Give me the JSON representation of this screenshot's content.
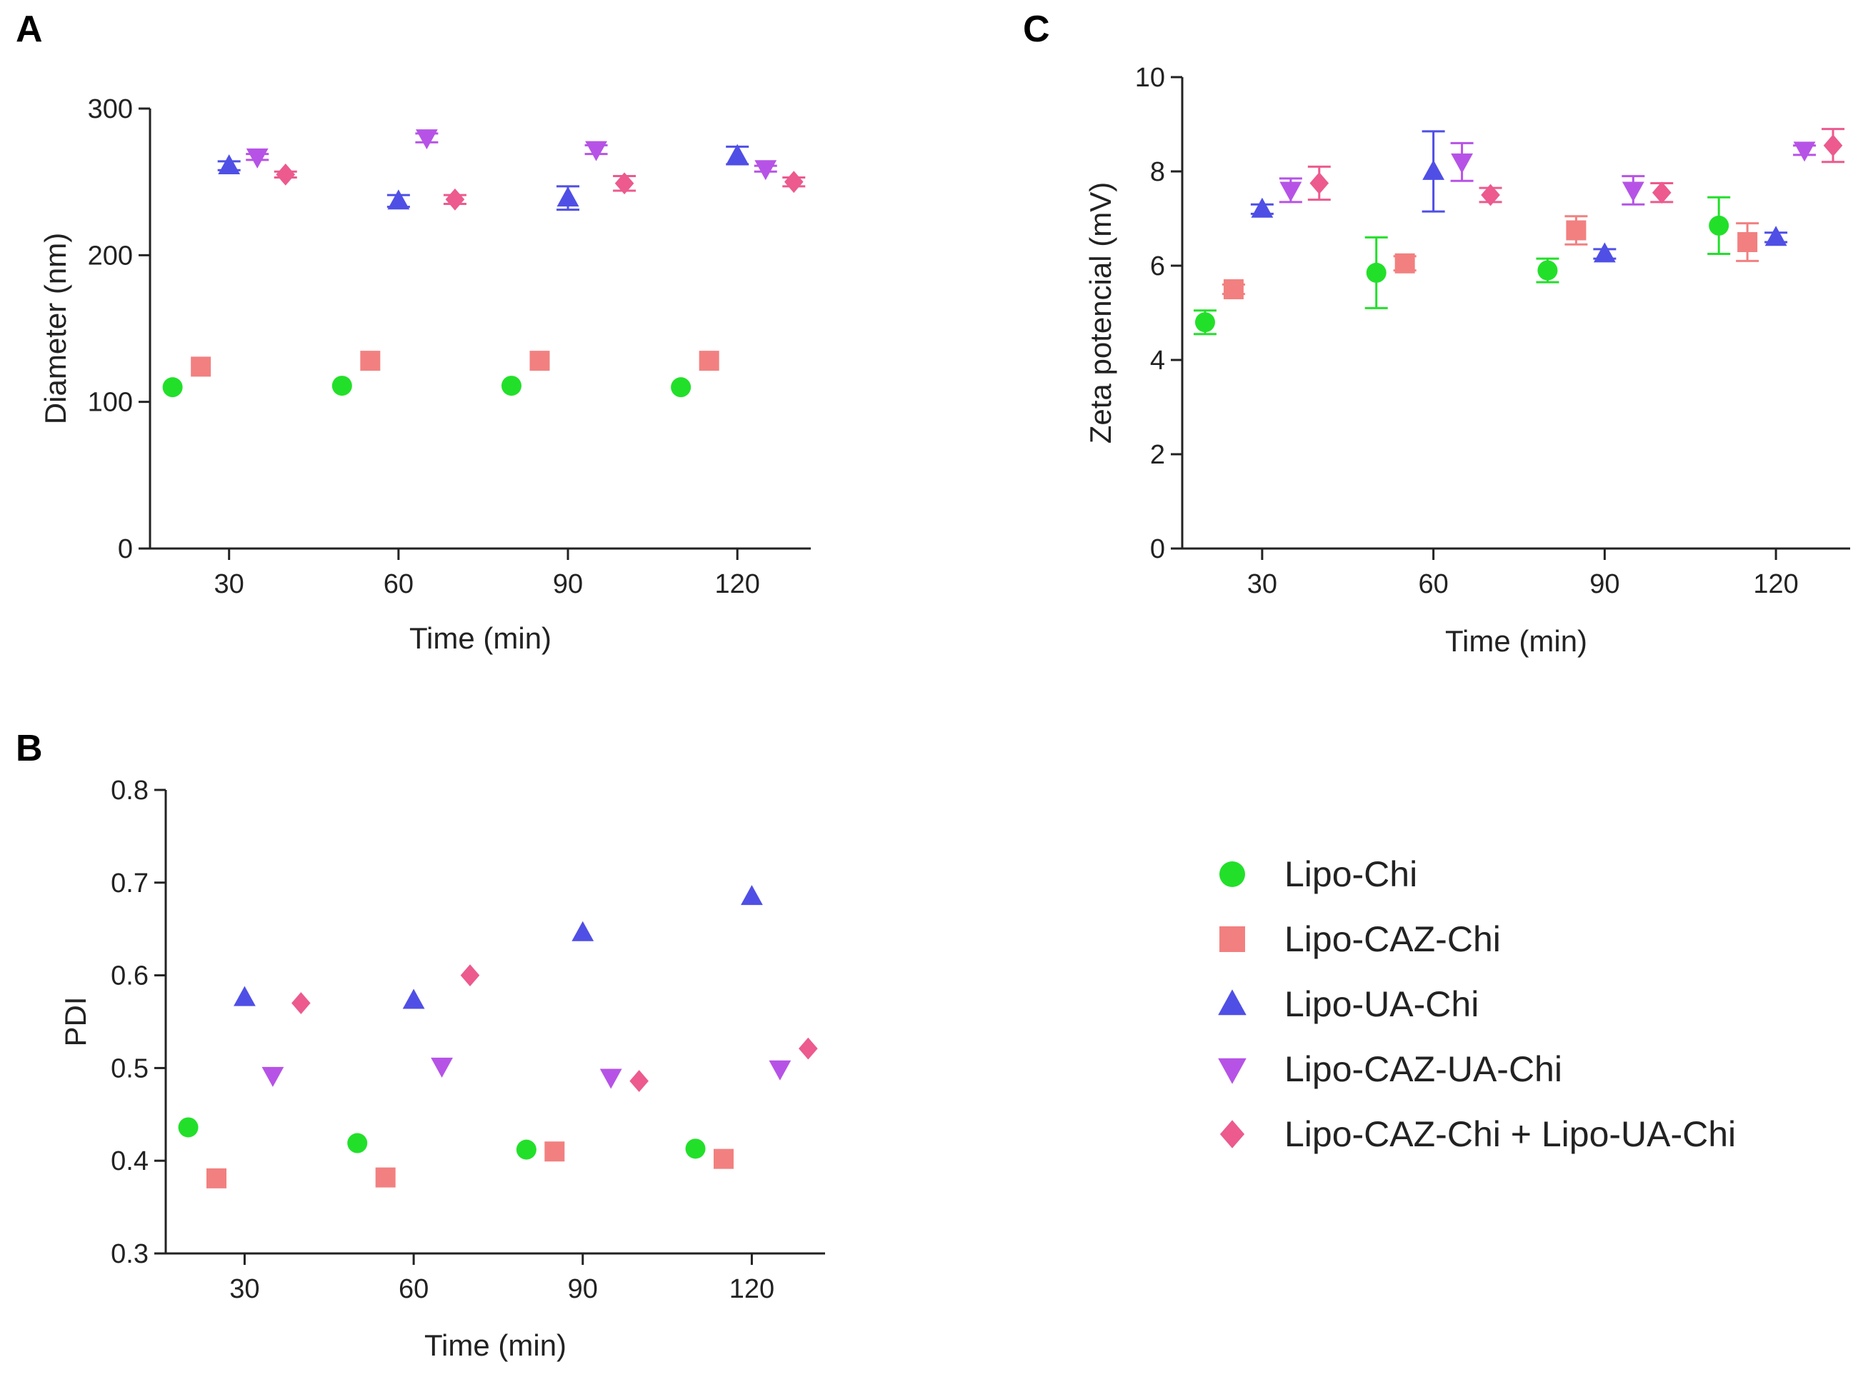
{
  "colors": {
    "Lipo-Chi": "#22e02a",
    "Lipo-CAZ-Chi": "#f28080",
    "Lipo-UA-Chi": "#4f4fe6",
    "Lipo-CAZ-UA-Chi": "#b653e6",
    "Lipo-CAZ-Chi + Lipo-UA-Chi": "#ec5a8e"
  },
  "legend": {
    "entries": [
      {
        "label": "Lipo-Chi",
        "marker": "circle"
      },
      {
        "label": "Lipo-CAZ-Chi",
        "marker": "square"
      },
      {
        "label": "Lipo-UA-Chi",
        "marker": "triangle-up"
      },
      {
        "label": "Lipo-CAZ-UA-Chi",
        "marker": "triangle-down"
      },
      {
        "label": "Lipo-CAZ-Chi + Lipo-UA-Chi",
        "marker": "diamond"
      }
    ]
  },
  "chart_data": [
    {
      "id": "A",
      "panel_label": "A",
      "type": "scatter",
      "xlabel": "Time  (min)",
      "ylabel": "Diameter (nm)",
      "xlim": [
        16,
        133
      ],
      "ylim": [
        0,
        300
      ],
      "xticks": [
        30,
        60,
        90,
        120
      ],
      "yticks": [
        0,
        100,
        200,
        300
      ],
      "series": [
        {
          "name": "Lipo-Chi",
          "x": [
            20,
            50,
            80,
            110
          ],
          "y": [
            110,
            111,
            111,
            110
          ],
          "err": [
            0,
            0,
            0,
            0
          ]
        },
        {
          "name": "Lipo-CAZ-Chi",
          "x": [
            25,
            55,
            85,
            115
          ],
          "y": [
            124,
            128,
            128,
            128
          ],
          "err": [
            0,
            0,
            0,
            0
          ]
        },
        {
          "name": "Lipo-UA-Chi",
          "x": [
            30,
            60,
            90,
            120
          ],
          "y": [
            261,
            237,
            239,
            268
          ],
          "err": [
            3,
            4,
            8,
            6
          ]
        },
        {
          "name": "Lipo-CAZ-UA-Chi",
          "x": [
            35,
            65,
            95,
            125
          ],
          "y": [
            267,
            280,
            272,
            259
          ],
          "err": [
            2,
            3,
            3,
            2
          ]
        },
        {
          "name": "Lipo-CAZ-Chi + Lipo-UA-Chi",
          "x": [
            40,
            70,
            100,
            130
          ],
          "y": [
            255,
            238,
            249,
            250
          ],
          "err": [
            2,
            3,
            5,
            3
          ]
        }
      ]
    },
    {
      "id": "B",
      "panel_label": "B",
      "type": "scatter",
      "xlabel": "Time  (min)",
      "ylabel": "PDI",
      "xlim": [
        16,
        133
      ],
      "ylim": [
        0.3,
        0.8
      ],
      "xticks": [
        30,
        60,
        90,
        120
      ],
      "yticks": [
        0.3,
        0.4,
        0.5,
        0.6,
        0.7,
        0.8
      ],
      "series": [
        {
          "name": "Lipo-Chi",
          "x": [
            20,
            50,
            80,
            110
          ],
          "y": [
            0.436,
            0.419,
            0.412,
            0.413
          ],
          "err": [
            0,
            0,
            0,
            0
          ]
        },
        {
          "name": "Lipo-CAZ-Chi",
          "x": [
            25,
            55,
            85,
            115
          ],
          "y": [
            0.381,
            0.382,
            0.41,
            0.402
          ],
          "err": [
            0,
            0,
            0,
            0
          ]
        },
        {
          "name": "Lipo-UA-Chi",
          "x": [
            30,
            60,
            90,
            120
          ],
          "y": [
            0.576,
            0.573,
            0.646,
            0.685
          ],
          "err": [
            0,
            0,
            0,
            0
          ]
        },
        {
          "name": "Lipo-CAZ-UA-Chi",
          "x": [
            35,
            65,
            95,
            125
          ],
          "y": [
            0.492,
            0.502,
            0.49,
            0.499
          ],
          "err": [
            0,
            0,
            0,
            0
          ]
        },
        {
          "name": "Lipo-CAZ-Chi + Lipo-UA-Chi",
          "x": [
            40,
            70,
            100,
            130
          ],
          "y": [
            0.57,
            0.6,
            0.486,
            0.521
          ],
          "err": [
            0,
            0,
            0,
            0
          ]
        }
      ]
    },
    {
      "id": "C",
      "panel_label": "C",
      "type": "scatter",
      "xlabel": "Time  (min)",
      "ylabel": "Zeta potencial (mV)",
      "xlim": [
        16,
        133
      ],
      "ylim": [
        0,
        10
      ],
      "xticks": [
        30,
        60,
        90,
        120
      ],
      "yticks": [
        0,
        2,
        4,
        6,
        8,
        10
      ],
      "series": [
        {
          "name": "Lipo-Chi",
          "x": [
            20,
            50,
            80,
            110
          ],
          "y": [
            4.8,
            5.85,
            5.9,
            6.85
          ],
          "err": [
            0.25,
            0.75,
            0.25,
            0.6
          ]
        },
        {
          "name": "Lipo-CAZ-Chi",
          "x": [
            25,
            55,
            85,
            115
          ],
          "y": [
            5.5,
            6.05,
            6.75,
            6.5
          ],
          "err": [
            0.1,
            0.15,
            0.3,
            0.4
          ]
        },
        {
          "name": "Lipo-UA-Chi",
          "x": [
            30,
            60,
            90,
            120
          ],
          "y": [
            7.2,
            8.0,
            6.25,
            6.6
          ],
          "err": [
            0.1,
            0.85,
            0.1,
            0.1
          ]
        },
        {
          "name": "Lipo-CAZ-UA-Chi",
          "x": [
            35,
            65,
            95,
            125
          ],
          "y": [
            7.6,
            8.2,
            7.6,
            8.45
          ],
          "err": [
            0.25,
            0.4,
            0.3,
            0.1
          ]
        },
        {
          "name": "Lipo-CAZ-Chi + Lipo-UA-Chi",
          "x": [
            40,
            70,
            100,
            130
          ],
          "y": [
            7.75,
            7.5,
            7.55,
            8.55
          ],
          "err": [
            0.35,
            0.15,
            0.2,
            0.35
          ]
        }
      ]
    }
  ]
}
